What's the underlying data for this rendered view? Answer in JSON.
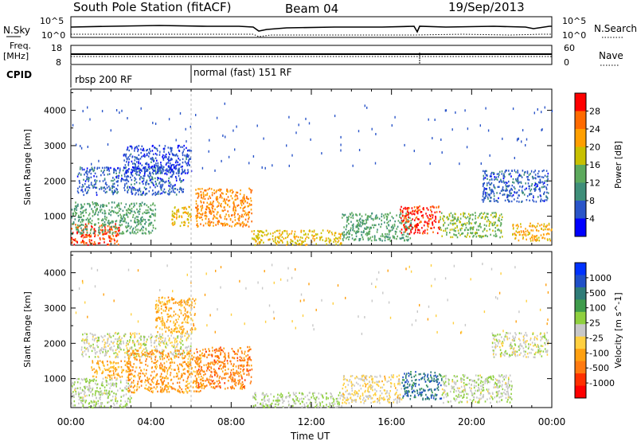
{
  "header": {
    "station": "South Pole Station (fitACF)",
    "beam": "Beam 04",
    "date": "19/Sep/2013"
  },
  "top_panels": {
    "nsky_label": "N.Sky",
    "nsky_ticks": [
      "10^5",
      "10^0"
    ],
    "nsearch_label": "N.Search",
    "nsearch_ticks": [
      "10^5",
      "10^0"
    ],
    "freq_label": "Freq.",
    "freq_unit": "[MHz]",
    "freq_ticks": [
      "18",
      "8"
    ],
    "nave_label": "Nave",
    "nave_ticks": [
      "60",
      "0"
    ],
    "cpid_label": "CPID",
    "cpid_segments": [
      {
        "label": "rbsp 200 RF",
        "start_hour": 0
      },
      {
        "label": "normal (fast) 151 RF",
        "start_hour": 6
      }
    ]
  },
  "x_axis": {
    "label": "Time UT",
    "ticks": [
      "00:00",
      "04:00",
      "08:00",
      "12:00",
      "16:00",
      "20:00",
      "00:00"
    ],
    "tick_hours": [
      0,
      4,
      8,
      12,
      16,
      20,
      24
    ]
  },
  "power_panel": {
    "ylabel": "Slant Range [km]",
    "yticks": [
      "4000",
      "3000",
      "2000",
      "1000"
    ],
    "colorbar_label": "Power [dB]",
    "colorbar_ticks": [
      "28",
      "24",
      "20",
      "16",
      "12",
      "8",
      "4"
    ],
    "colors": [
      "#0000ff",
      "#2a55c9",
      "#3f8f7a",
      "#5daa5d",
      "#c8c000",
      "#ff9f00",
      "#ff6a00",
      "#ff0000"
    ]
  },
  "velocity_panel": {
    "ylabel": "Slant Range [km]",
    "yticks": [
      "4000",
      "3000",
      "2000",
      "1000"
    ],
    "colorbar_label": "Velocity [m s^-1]",
    "colorbar_ticks": [
      "1000",
      "500",
      "100",
      "25",
      "-25",
      "-100",
      "-500",
      "-1000"
    ],
    "colors": [
      "#0032ff",
      "#2050c8",
      "#2f7c78",
      "#3f9c4c",
      "#8fd03f",
      "#c8c8c8",
      "#ffd040",
      "#ffa010",
      "#ff7a10",
      "#ff3000",
      "#ff0000"
    ]
  },
  "chart_data": {
    "type": "heatmap",
    "title": "South Pole Station (fitACF) Beam 04 19/Sep/2013",
    "xlabel": "Time UT",
    "ylabel": "Slant Range [km]",
    "xlim_hours": [
      0,
      24
    ],
    "ylim_km": [
      180,
      4600
    ],
    "panels": [
      {
        "name": "Power",
        "units": "dB",
        "colorbar_range": [
          0,
          30
        ],
        "regions": [
          {
            "t0": 0.0,
            "t1": 2.4,
            "r0": 180,
            "r1": 800,
            "value": 26
          },
          {
            "t0": 0.0,
            "t1": 4.2,
            "r0": 500,
            "r1": 1400,
            "value": 12
          },
          {
            "t0": 0.3,
            "t1": 5.6,
            "r0": 1600,
            "r1": 2400,
            "value": 6
          },
          {
            "t0": 2.6,
            "t1": 6.0,
            "r0": 2200,
            "r1": 3000,
            "value": 5
          },
          {
            "t0": 6.2,
            "t1": 9.0,
            "r0": 700,
            "r1": 1800,
            "value": 22
          },
          {
            "t0": 5.0,
            "t1": 6.0,
            "r0": 700,
            "r1": 1300,
            "value": 18
          },
          {
            "t0": 9.0,
            "t1": 13.5,
            "r0": 180,
            "r1": 600,
            "value": 18
          },
          {
            "t0": 13.5,
            "t1": 17.0,
            "r0": 300,
            "r1": 1100,
            "value": 12
          },
          {
            "t0": 16.4,
            "t1": 18.4,
            "r0": 500,
            "r1": 1300,
            "value": 27
          },
          {
            "t0": 18.4,
            "t1": 21.5,
            "r0": 400,
            "r1": 1100,
            "value": 14
          },
          {
            "t0": 20.5,
            "t1": 23.8,
            "r0": 1400,
            "r1": 2300,
            "value": 6
          },
          {
            "t0": 22.0,
            "t1": 24.0,
            "r0": 300,
            "r1": 800,
            "value": 20
          }
        ]
      },
      {
        "name": "Velocity",
        "units": "m s^-1",
        "colorbar_range": [
          -1000,
          1000
        ],
        "regions": [
          {
            "t0": 0.0,
            "t1": 3.0,
            "r0": 180,
            "r1": 1000,
            "value": 80
          },
          {
            "t0": 0.5,
            "t1": 6.0,
            "r0": 1600,
            "r1": 2300,
            "value": 0
          },
          {
            "t0": 1.0,
            "t1": 3.0,
            "r0": 1000,
            "r1": 1500,
            "value": -300
          },
          {
            "t0": 2.8,
            "t1": 6.5,
            "r0": 600,
            "r1": 1800,
            "value": -400
          },
          {
            "t0": 4.2,
            "t1": 6.2,
            "r0": 2300,
            "r1": 3300,
            "value": -300
          },
          {
            "t0": 6.2,
            "t1": 9.0,
            "r0": 700,
            "r1": 1900,
            "value": -500
          },
          {
            "t0": 9.0,
            "t1": 13.5,
            "r0": 180,
            "r1": 600,
            "value": 90
          },
          {
            "t0": 13.5,
            "t1": 16.5,
            "r0": 300,
            "r1": 1100,
            "value": -120
          },
          {
            "t0": 16.5,
            "t1": 18.5,
            "r0": 400,
            "r1": 1200,
            "value": 600
          },
          {
            "t0": 18.5,
            "t1": 22.0,
            "r0": 300,
            "r1": 1100,
            "value": 60
          },
          {
            "t0": 21.0,
            "t1": 23.8,
            "r0": 1600,
            "r1": 2300,
            "value": 0
          }
        ]
      }
    ],
    "nsky": "approximately constant near 10^5 with dips",
    "nsearch": "approximately constant near 10^0",
    "freq_mhz": 12,
    "nave": 22
  }
}
